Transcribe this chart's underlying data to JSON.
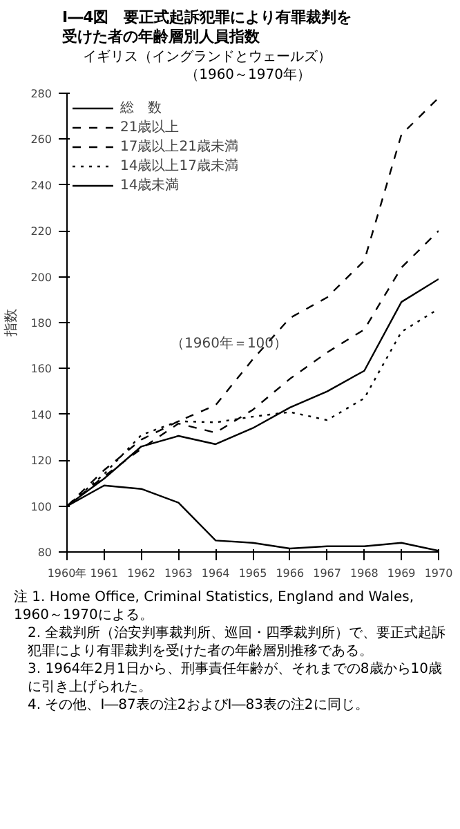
{
  "chart_data": {
    "type": "line",
    "title": "I―4図　要正式起訴犯罪により有罪裁判を受けた者の年齢層別人員指数",
    "subtitle": "イギリス（イングランドとウェールズ）",
    "ylabel": "指数",
    "x": [
      1960,
      1961,
      1962,
      1963,
      1964,
      1965,
      1966,
      1967,
      1968,
      1969,
      1970
    ],
    "xlim": [
      1960,
      1970
    ],
    "xticks": [
      {
        "value": 1960,
        "label": "1960年"
      },
      1961,
      1962,
      1963,
      1964,
      1965,
      1966,
      1967,
      1968,
      1969,
      1970
    ],
    "ylim": [
      80,
      280
    ],
    "yticks": [
      80,
      100,
      120,
      140,
      160,
      180,
      200,
      220,
      240,
      260,
      280
    ],
    "grid": false,
    "legend": "top left",
    "series": [
      {
        "name": "総　数",
        "color": "#000000",
        "line_style": "solid",
        "values": [
          100,
          112,
          126,
          130.6,
          127,
          134,
          143,
          150,
          159,
          189,
          199
        ]
      },
      {
        "name": "21歳以上",
        "color": "#000000",
        "line_style": "dashed",
        "values": [
          100,
          113,
          125,
          136,
          132,
          142,
          155.5,
          167,
          177,
          204,
          220
        ]
      },
      {
        "name": "17歳以上21歳未満",
        "color": "#000000",
        "line_style": "dashed",
        "values": [
          100,
          115.7,
          129,
          137,
          144,
          164,
          182,
          191,
          207,
          262,
          278
        ]
      },
      {
        "name": "14歳以上17歳未満",
        "color": "#000000",
        "line_style": "dotted",
        "values": [
          100,
          114,
          131,
          137,
          136.5,
          139,
          141,
          137.5,
          147,
          176,
          186
        ]
      },
      {
        "name": "14歳未満",
        "color": "#000000",
        "line_style": "solid",
        "values": [
          100,
          109,
          107.5,
          101.5,
          85,
          84,
          81.5,
          82.5,
          82.5,
          84,
          80.5
        ]
      }
    ],
    "annotations": [
      "（1960～1970年）",
      "（1960年＝100）",
      "注 1.  Home Office, Criminal Statistics, England and Wales, 1960～1970による。",
      "2.  全裁判所（治安判事裁判所、巡回・四季裁判所）で、要正式起訴犯罪により有罪裁判を受けた者の年齢層別推移である。",
      "3.  1964年2月1日から、刑事責任年齢が、それまでの8歳から10歳に引き上げられた。",
      "4.  その他、I―87表の注2およびI―83表の注2に同じ。"
    ]
  }
}
